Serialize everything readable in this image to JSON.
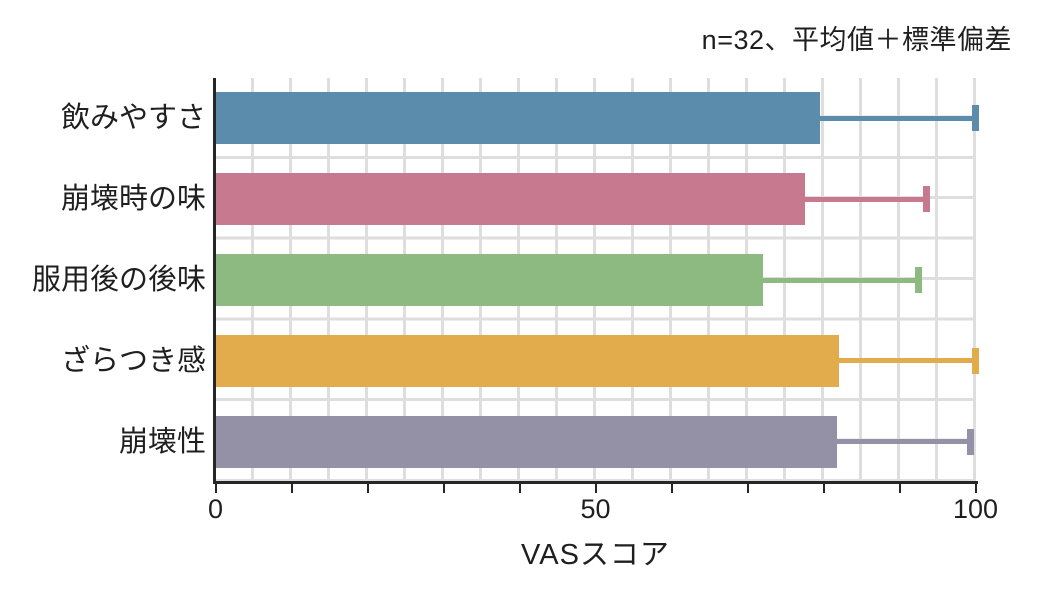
{
  "annotation": "n=32、平均値＋標準偏差",
  "chart_data": {
    "type": "bar",
    "orientation": "horizontal",
    "title": "",
    "xlabel": "VASスコア",
    "ylabel": "",
    "xlim": [
      0,
      100
    ],
    "xticks": [
      0,
      50,
      100
    ],
    "minor_tick_step": 10,
    "grid": true,
    "legend": "none",
    "categories": [
      "飲みやすさ",
      "崩壊時の味",
      "服用後の後味",
      "ざらつき感",
      "崩壊性"
    ],
    "series": [
      {
        "name": "平均値",
        "values": [
          79.5,
          77.5,
          72,
          82,
          81.8
        ]
      }
    ],
    "error_plus": [
      20.5,
      16,
      20.5,
      18,
      17.6
    ],
    "bar_colors": [
      "#5b8cab",
      "#c7798f",
      "#8cba80",
      "#e2ab4c",
      "#9490a5"
    ],
    "grid_color": "#dedede",
    "axis_color": "#262626"
  }
}
